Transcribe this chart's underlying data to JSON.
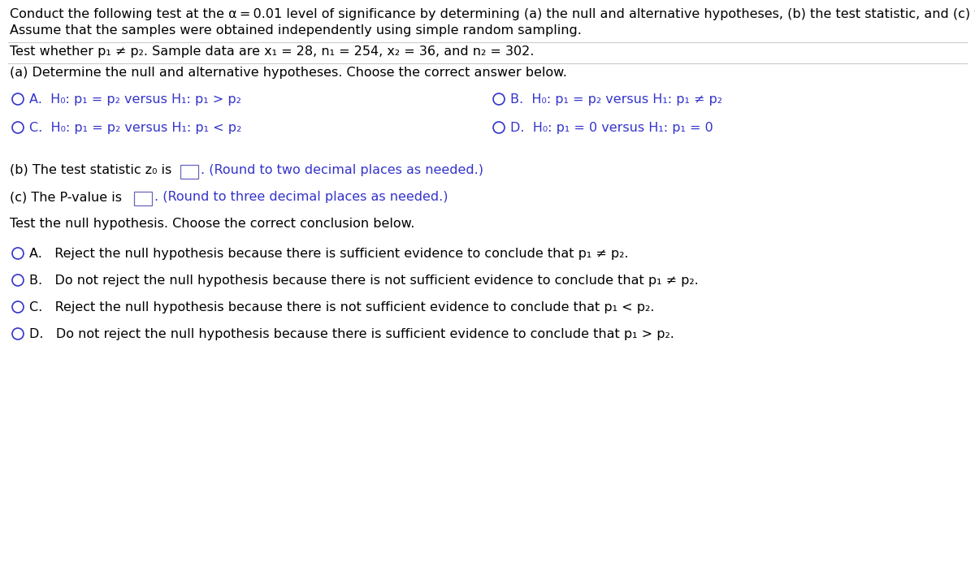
{
  "bg_color": "#ffffff",
  "text_color": "#000000",
  "blue_color": "#3333cc",
  "line_color": "#cccccc",
  "box_color": "#6666bb",
  "figw": 12.0,
  "figh": 7.24,
  "dpi": 100,
  "fs": 11.5,
  "fs_small": 10.5,
  "line1": "Conduct the following test at the α = 0.01 level of significance by determining (a) the null and alternative hypotheses, (b) the test statistic, and (c) the P-value.",
  "line2": "Assume that the samples were obtained independently using simple random sampling.",
  "line3": "Test whether p₁ ≠ p₂. Sample data are x₁ = 28, n₁ = 254, x₂ = 36, and n₂ = 302.",
  "sec_a": "(a) Determine the null and alternative hypotheses. Choose the correct answer below.",
  "optA": "A.  H₀: p₁ = p₂ versus H₁: p₁ > p₂",
  "optB": "B.  H₀: p₁ = p₂ versus H₁: p₁ ≠ p₂",
  "optC": "C.  H₀: p₁ = p₂ versus H₁: p₁ < p₂",
  "optD": "D.  H₀: p₁ = 0 versus H₁: p₁ = 0",
  "sec_b_pre": "(b) The test statistic z₀ is",
  "sec_b_post": ". (Round to two decimal places as needed.)",
  "sec_c_pre": "(c) The P-value is",
  "sec_c_post": ". (Round to three decimal places as needed.)",
  "sec_test": "Test the null hypothesis. Choose the correct conclusion below.",
  "conclA": "A.   Reject the null hypothesis because there is sufficient evidence to conclude that p₁ ≠ p₂.",
  "conclB": "B.   Do not reject the null hypothesis because there is not sufficient evidence to conclude that p₁ ≠ p₂.",
  "conclC": "C.   Reject the null hypothesis because there is not sufficient evidence to conclude that p₁ < p₂.",
  "conclD": "D.   Do not reject the null hypothesis because there is sufficient evidence to conclude that p₁ > p₂."
}
